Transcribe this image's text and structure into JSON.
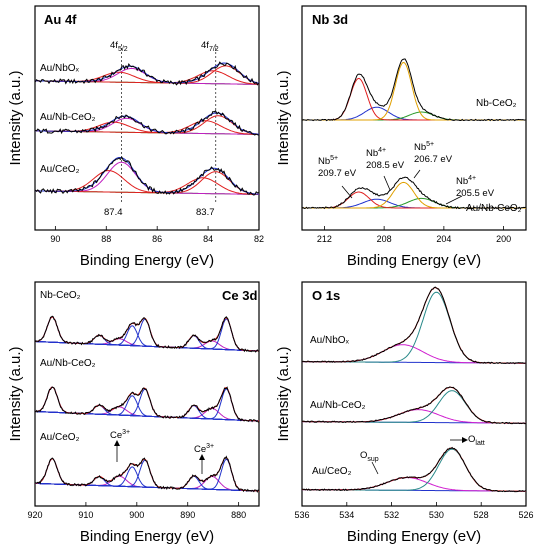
{
  "chart_data": [
    {
      "id": "au4f",
      "type": "line",
      "title": "Au 4f",
      "xlabel": "Binding Energy (eV)",
      "ylabel": "Intensity (a.u.)",
      "xlim": [
        90.8,
        82
      ],
      "xticks": [
        90,
        88,
        86,
        84,
        82
      ],
      "reversed_x": true,
      "y_ticks_shown": false,
      "peak_labels": [
        {
          "text": "4f",
          "sub": "5/2"
        },
        {
          "text": "4f",
          "sub": "7/2"
        }
      ],
      "reference_lines": [
        87.4,
        83.7
      ],
      "reference_labels": [
        "87.4",
        "83.7"
      ],
      "samples": [
        "Au/NbOₓ",
        "Au/Nb-CeO₂",
        "Au/CeO₂"
      ],
      "colors": {
        "raw": "#000000",
        "envelope": "#2233cc",
        "component_a": "#e02020",
        "component_b": "#c020c0",
        "background": "#2a9a2a"
      }
    },
    {
      "id": "nb3d",
      "type": "line",
      "title": "Nb 3d",
      "xlabel": "Binding Energy (eV)",
      "ylabel": "Intensity (a.u.)",
      "xlim": [
        213.5,
        198.5
      ],
      "xticks": [
        212,
        208,
        204,
        200
      ],
      "reversed_x": true,
      "y_ticks_shown": false,
      "samples": [
        "Nb-CeO₂",
        "Au/Nb-CeO₂"
      ],
      "annotations": [
        {
          "species": "Nb",
          "charge": "5+",
          "energy": "209.7 eV"
        },
        {
          "species": "Nb",
          "charge": "4+",
          "energy": "208.5 eV"
        },
        {
          "species": "Nb",
          "charge": "5+",
          "energy": "206.7 eV"
        },
        {
          "species": "Nb",
          "charge": "4+",
          "energy": "205.5 eV"
        }
      ],
      "peaks": {
        "Nb5+": [
          209.7,
          206.7
        ],
        "Nb4+": [
          208.5,
          205.5
        ]
      },
      "colors": {
        "Nb5+": "#e02020",
        "Nb5+_b": "#e0a000",
        "Nb4+": "#2233cc",
        "Nb4+_b": "#2a9a2a",
        "envelope": "#000000"
      }
    },
    {
      "id": "ce3d",
      "type": "line",
      "title": "Ce 3d",
      "xlabel": "Binding Energy (eV)",
      "ylabel": "Intensity (a.u.)",
      "xlim": [
        920,
        876
      ],
      "xticks": [
        920,
        910,
        900,
        890,
        880
      ],
      "reversed_x": true,
      "y_ticks_shown": false,
      "samples": [
        "Nb-CeO₂",
        "Au/Nb-CeO₂",
        "Au/CeO₂"
      ],
      "annotations": [
        {
          "species": "Ce",
          "charge": "3+",
          "energy": 901.5
        },
        {
          "species": "Ce",
          "charge": "3+",
          "energy": 885.5
        }
      ],
      "ce4_peaks": [
        916.6,
        907.4,
        900.9,
        898.4,
        888.8,
        882.4
      ],
      "ce3_peaks": [
        903.4,
        885.2
      ],
      "colors": {
        "raw": "#000000",
        "fit": "#e02020",
        "ce4": "#2233cc",
        "ce3": "#c020c0",
        "background": "#29a9b9"
      }
    },
    {
      "id": "o1s",
      "type": "line",
      "title": "O 1s",
      "xlabel": "Binding Energy (eV)",
      "ylabel": "Intensity (a.u.)",
      "xlim": [
        536,
        526
      ],
      "xticks": [
        536,
        534,
        532,
        530,
        528,
        526
      ],
      "reversed_x": true,
      "y_ticks_shown": false,
      "samples": [
        "Au/NbOₓ",
        "Au/Nb-CeO₂",
        "Au/CeO₂"
      ],
      "annotations": [
        {
          "text": "O",
          "sub": "sup"
        },
        {
          "text": "O",
          "sub": "latt"
        }
      ],
      "peaks": {
        "O_latt": [
          530.0,
          529.3,
          529.3
        ],
        "O_sup": [
          531.5,
          530.8,
          531.3
        ]
      },
      "colors": {
        "raw": "#000000",
        "fit": "#e02020",
        "O_latt": "#2a8a8a",
        "O_sup": "#d020d0",
        "background": "#2233cc"
      }
    }
  ]
}
